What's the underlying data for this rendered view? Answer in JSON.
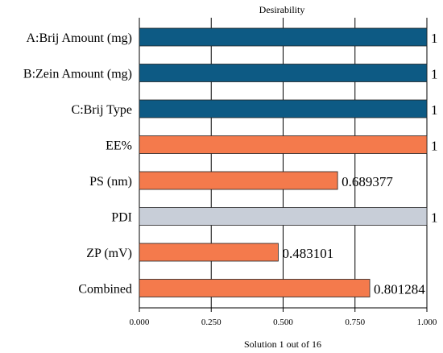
{
  "chart_data": {
    "type": "bar",
    "orientation": "horizontal",
    "title": "Desirability",
    "xlabel": "Solution 1 out of 16",
    "xlim": [
      0,
      1
    ],
    "xticks": [
      "0.000",
      "0.250",
      "0.500",
      "0.750",
      "1.000"
    ],
    "grid": true,
    "categories": [
      "A:Brij Amount (mg)",
      "B:Zein Amount (mg)",
      "C:Brij Type",
      "EE%",
      "PS (nm)",
      "PDI",
      "ZP (mV)",
      "Combined"
    ],
    "values": [
      1,
      1,
      1,
      1,
      0.689377,
      1,
      0.483101,
      0.801284
    ],
    "value_labels": [
      "1",
      "1",
      "1",
      "1",
      "0.689377",
      "1",
      "0.483101",
      "0.801284"
    ],
    "bar_colors": [
      "#0d5a84",
      "#0d5a84",
      "#0d5a84",
      "#f47a4c",
      "#f47a4c",
      "#c8ced8",
      "#f47a4c",
      "#f47a4c"
    ]
  }
}
